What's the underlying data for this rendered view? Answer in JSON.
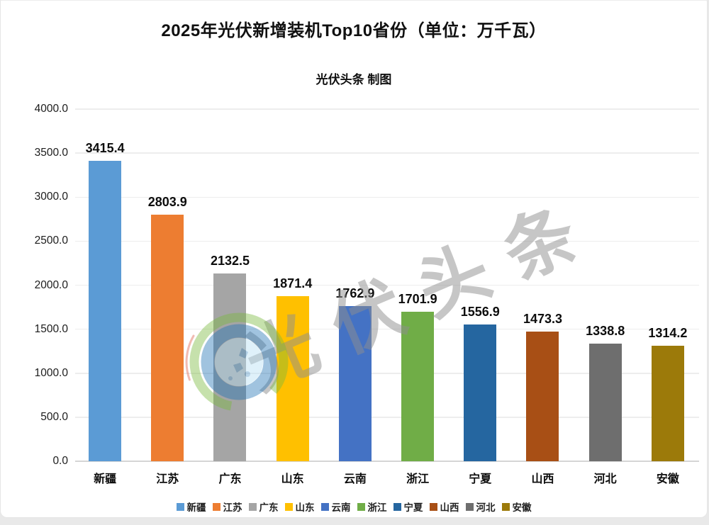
{
  "colors": {
    "page_bg": "#e9e9e9",
    "card_bg": "#ffffff",
    "gridline": "#ededed",
    "axis_line": "#d5d5d5",
    "text": "#101010",
    "watermark_text": "#8f8f8f"
  },
  "header": {
    "title": "2025年光伏新增装机Top10省份（单位：万千瓦）",
    "subtitle": "光伏头条 制图"
  },
  "watermark": {
    "text": "光伏头条",
    "logo": "pv-headlines-logo"
  },
  "chart_data": {
    "type": "bar",
    "title": "2025年光伏新增装机Top10省份",
    "unit": "万千瓦",
    "source_label": "光伏头条 制图",
    "categories": [
      "新疆",
      "江苏",
      "广东",
      "山东",
      "云南",
      "浙江",
      "宁夏",
      "山西",
      "河北",
      "安徽"
    ],
    "values": [
      3415.4,
      2803.9,
      2132.5,
      1871.4,
      1762.9,
      1701.9,
      1556.9,
      1473.3,
      1338.8,
      1314.2
    ],
    "bar_colors": [
      "#5B9BD5",
      "#ED7D31",
      "#A5A5A5",
      "#FFC000",
      "#4472C4",
      "#70AD47",
      "#2566A0",
      "#A84F15",
      "#6E6E6E",
      "#9C7A0A"
    ],
    "value_label_decimals": 1,
    "y_ticks": [
      0,
      500,
      1000,
      1500,
      2000,
      2500,
      3000,
      3500,
      4000
    ],
    "y_tick_decimals": 1,
    "ylim": [
      0,
      4000
    ],
    "grid": true,
    "legend_position": "bottom",
    "legend": [
      "新疆",
      "江苏",
      "广东",
      "山东",
      "云南",
      "浙江",
      "宁夏",
      "山西",
      "河北",
      "安徽"
    ]
  }
}
